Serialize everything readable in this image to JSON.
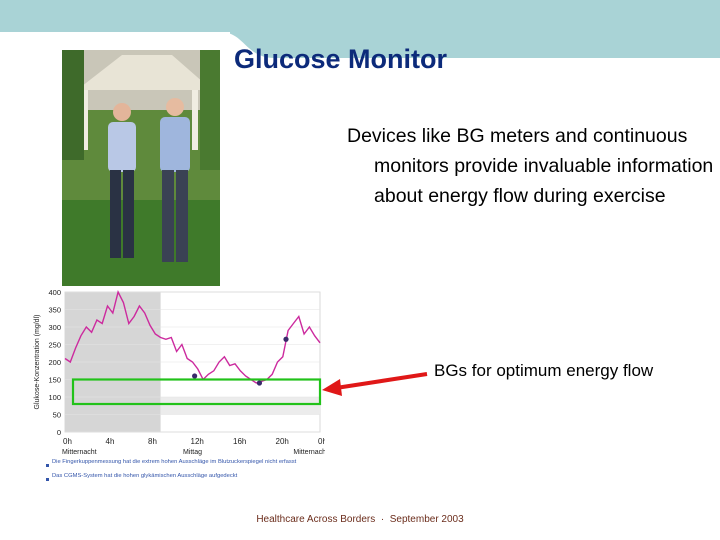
{
  "slide": {
    "title": "Glucose Monitor",
    "body": "Devices like BG meters and continuous monitors provide invaluable information about energy flow during exercise",
    "callout": "BGs for optimum energy flow",
    "footer_left": "Healthcare Across Borders",
    "footer_sep": "·",
    "footer_right": "September 2003"
  },
  "colors": {
    "title": "#0c2a7a",
    "band": "#a9d3d6",
    "arrow": "#e01818",
    "target_box": "#22c21a",
    "trace": "#cc2a9e"
  },
  "photo": {
    "icon": "two-men-photo"
  },
  "chart_data": {
    "type": "line",
    "ylabel": "Glukose-Konzentration (mg/dl)",
    "ylim": [
      0,
      400
    ],
    "yticks": [
      "400",
      "350",
      "300",
      "250",
      "200",
      "150",
      "100",
      "50",
      "0"
    ],
    "xticks": [
      "0h",
      "4h",
      "8h",
      "12h",
      "16h",
      "20h",
      "0h"
    ],
    "xsub": [
      "Mitternacht",
      "Mittag",
      "Mitternacht"
    ],
    "notes": [
      "Die Fingerkuppenmessung hat die extrem hohen Ausschläge im Blutzuckerspiegel nicht erfasst",
      "Das CGMS-System hat die hohen glykämischen Ausschläge aufgedeckt"
    ],
    "target_range": [
      80,
      150
    ],
    "x": [
      0,
      0.5,
      1,
      1.5,
      2,
      2.5,
      3,
      3.5,
      4,
      4.5,
      5,
      5.5,
      6,
      6.5,
      7,
      7.5,
      8,
      8.5,
      9,
      9.5,
      10,
      10.5,
      11,
      11.5,
      12,
      12.5,
      13,
      13.5,
      14,
      14.5,
      15,
      15.5,
      16,
      16.5,
      17,
      17.5,
      18,
      18.5,
      19,
      19.5,
      20,
      20.5,
      21,
      21.5,
      22,
      22.5,
      23,
      23.5,
      24
    ],
    "series": [
      {
        "values": [
          210,
          200,
          240,
          275,
          300,
          285,
          320,
          310,
          360,
          340,
          400,
          370,
          310,
          330,
          360,
          340,
          305,
          280,
          270,
          265,
          270,
          230,
          250,
          210,
          200,
          180,
          150,
          165,
          175,
          200,
          215,
          190,
          195,
          175,
          160,
          150,
          140,
          145,
          150,
          165,
          200,
          215,
          290,
          310,
          330,
          280,
          300,
          275,
          255
        ]
      }
    ],
    "markers": [
      {
        "x": 12.2,
        "y": 160
      },
      {
        "x": 18.3,
        "y": 140
      },
      {
        "x": 20.8,
        "y": 265
      }
    ]
  }
}
